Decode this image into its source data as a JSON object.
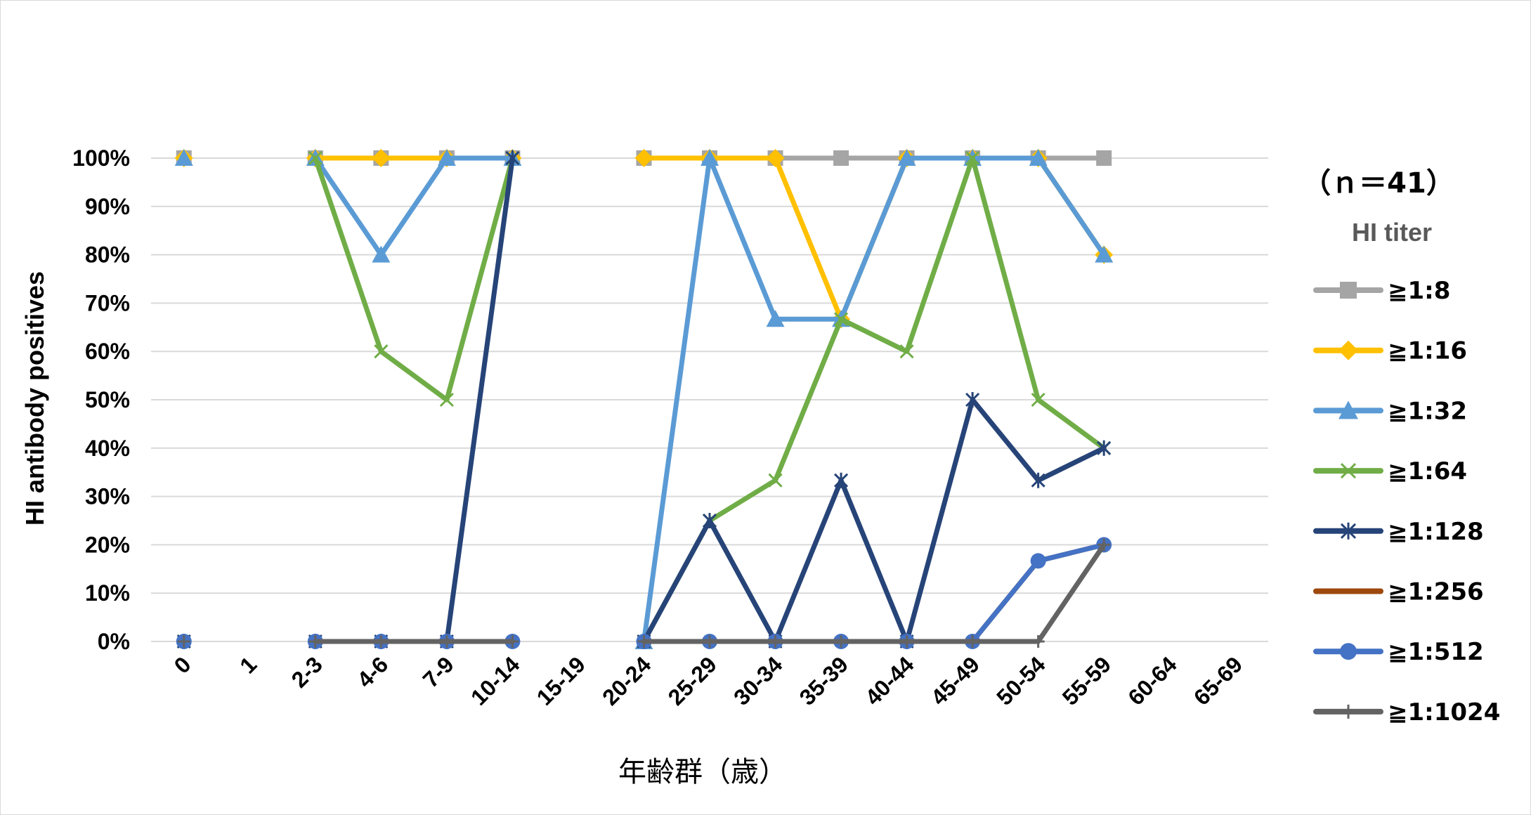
{
  "chart_data": {
    "type": "line",
    "title": "",
    "xlabel": "年齢群（歳）",
    "ylabel": "HI antibody  positives",
    "ylim": [
      0,
      1
    ],
    "yticks": [
      "0%",
      "10%",
      "20%",
      "30%",
      "40%",
      "50%",
      "60%",
      "70%",
      "80%",
      "90%",
      "100%"
    ],
    "categories": [
      "0",
      "1",
      "2-3",
      "4-6",
      "7-9",
      "10-14",
      "15-19",
      "20-24",
      "25-29",
      "30-34",
      "35-39",
      "40-44",
      "45-49",
      "50-54",
      "55-59",
      "60-64",
      "65-69"
    ],
    "grid": true,
    "legend_position": "right",
    "legend_note": "（ｎ＝41）",
    "legend_title": "HI titer",
    "series": [
      {
        "name": "≧1:8",
        "color": "#a5a5a5",
        "marker": "square",
        "values": [
          1,
          null,
          1,
          1,
          1,
          1,
          null,
          1,
          1,
          1,
          1,
          1,
          1,
          1,
          1,
          null,
          null
        ]
      },
      {
        "name": "≧1:16",
        "color": "#ffc000",
        "marker": "diamond",
        "values": [
          1,
          null,
          1,
          1,
          1,
          1,
          null,
          1,
          1,
          1,
          0.6667,
          1,
          1,
          1,
          0.8,
          null,
          null
        ]
      },
      {
        "name": "≧1:32",
        "color": "#5b9bd5",
        "marker": "triangle",
        "values": [
          1,
          null,
          1,
          0.8,
          1,
          1,
          null,
          0,
          1,
          0.6667,
          0.6667,
          1,
          1,
          1,
          0.8,
          null,
          null
        ]
      },
      {
        "name": "≧1:64",
        "color": "#70ad47",
        "marker": "x",
        "values": [
          0,
          null,
          1,
          0.6,
          0.5,
          1,
          null,
          0,
          0.25,
          0.3333,
          0.6667,
          0.6,
          1,
          0.5,
          0.4,
          null,
          null
        ]
      },
      {
        "name": "≧1:128",
        "color": "#264478",
        "marker": "star",
        "values": [
          0,
          null,
          0,
          0,
          0,
          1,
          null,
          0,
          0.25,
          0,
          0.3333,
          0,
          0.5,
          0.3333,
          0.4,
          null,
          null
        ]
      },
      {
        "name": "≧1:256",
        "color": "#9e480e",
        "marker": "none",
        "values": [
          0,
          null,
          0,
          0,
          0,
          0,
          null,
          0,
          0,
          0,
          0,
          0,
          0,
          0.1667,
          0.2,
          null,
          null
        ]
      },
      {
        "name": "≧1:512",
        "color": "#4472c4",
        "marker": "circle",
        "values": [
          0,
          null,
          0,
          0,
          0,
          0,
          null,
          0,
          0,
          0,
          0,
          0,
          0,
          0.1667,
          0.2,
          null,
          null
        ]
      },
      {
        "name": "≧1:1024",
        "color": "#636363",
        "marker": "plus",
        "values": [
          0,
          null,
          0,
          0,
          0,
          0,
          null,
          0,
          0,
          0,
          0,
          0,
          0,
          0,
          0.2,
          null,
          null
        ]
      }
    ]
  }
}
